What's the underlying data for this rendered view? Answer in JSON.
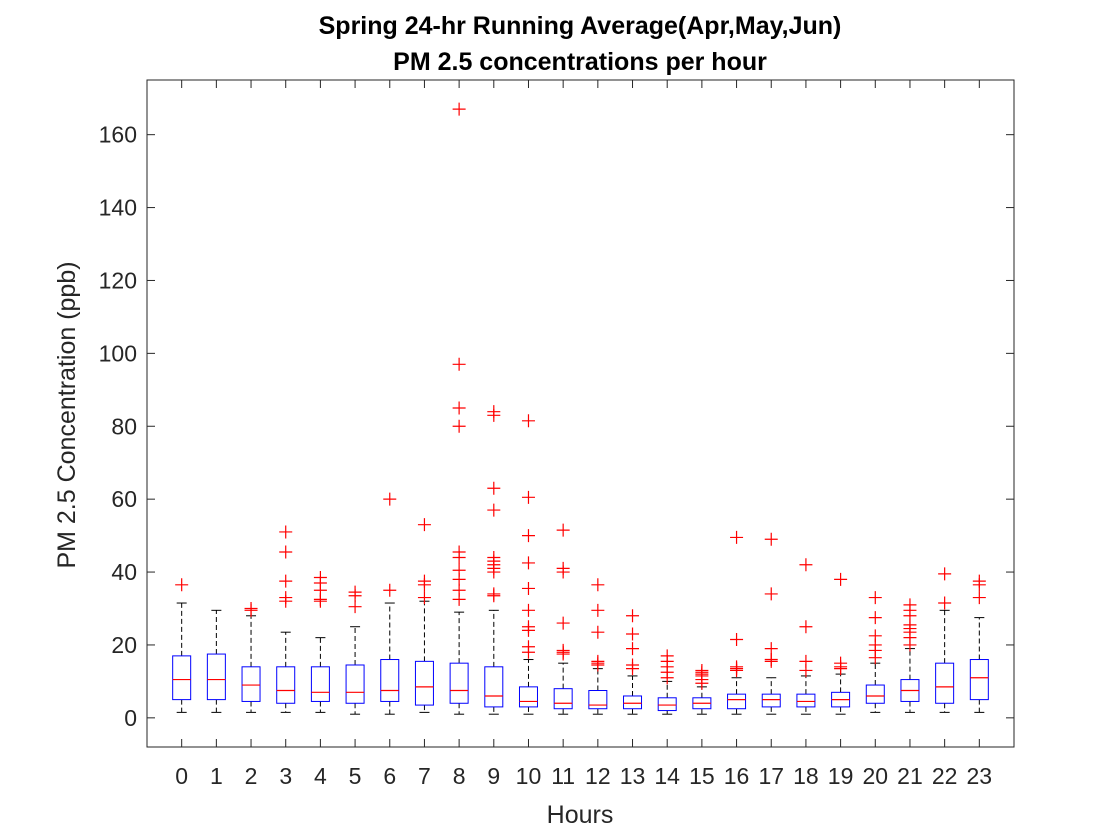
{
  "chart_data": {
    "type": "boxplot",
    "title": "Spring 24-hr Running Average(Apr,May,Jun)",
    "subtitle": "PM 2.5 concentrations per hour",
    "xlabel": "Hours",
    "ylabel": "PM 2.5 Concentration (ppb)",
    "ylim": [
      -8,
      175
    ],
    "yticks": [
      "0",
      "20",
      "40",
      "60",
      "80",
      "100",
      "120",
      "140",
      "160"
    ],
    "categories": [
      "0",
      "1",
      "2",
      "3",
      "4",
      "5",
      "6",
      "7",
      "8",
      "9",
      "10",
      "11",
      "12",
      "13",
      "14",
      "15",
      "16",
      "17",
      "18",
      "19",
      "20",
      "21",
      "22",
      "23"
    ],
    "boxes": [
      {
        "lower_whisker": 1.5,
        "q1": 5,
        "median": 10.5,
        "q3": 17,
        "upper_whisker": 31.5,
        "outliers": [
          36.5
        ]
      },
      {
        "lower_whisker": 1.5,
        "q1": 5,
        "median": 10.5,
        "q3": 17.5,
        "upper_whisker": 29.5,
        "outliers": []
      },
      {
        "lower_whisker": 1.5,
        "q1": 4.5,
        "median": 9,
        "q3": 14,
        "upper_whisker": 28,
        "outliers": [
          29.5,
          30
        ]
      },
      {
        "lower_whisker": 1.5,
        "q1": 4,
        "median": 7.5,
        "q3": 14,
        "upper_whisker": 23.5,
        "outliers": [
          32,
          33,
          37.5,
          45.5,
          51
        ]
      },
      {
        "lower_whisker": 1.5,
        "q1": 4.5,
        "median": 7,
        "q3": 14,
        "upper_whisker": 22,
        "outliers": [
          32,
          32.5,
          35,
          37,
          38.5
        ]
      },
      {
        "lower_whisker": 1,
        "q1": 4,
        "median": 7,
        "q3": 14.5,
        "upper_whisker": 25,
        "outliers": [
          30.5,
          33.5,
          34.5
        ]
      },
      {
        "lower_whisker": 1,
        "q1": 4.5,
        "median": 7.5,
        "q3": 16,
        "upper_whisker": 31.5,
        "outliers": [
          35,
          60
        ]
      },
      {
        "lower_whisker": 1.5,
        "q1": 3.5,
        "median": 8.5,
        "q3": 15.5,
        "upper_whisker": 32,
        "outliers": [
          33,
          36.5,
          37.5,
          53
        ]
      },
      {
        "lower_whisker": 1,
        "q1": 4,
        "median": 7.5,
        "q3": 15,
        "upper_whisker": 29,
        "outliers": [
          32.5,
          35,
          38,
          40.5,
          44,
          45.5,
          80,
          85,
          97,
          167
        ]
      },
      {
        "lower_whisker": 1,
        "q1": 3,
        "median": 6,
        "q3": 14,
        "upper_whisker": 29.5,
        "outliers": [
          33.5,
          34,
          40,
          41,
          42,
          43,
          44,
          57,
          63,
          83,
          84
        ]
      },
      {
        "lower_whisker": 1,
        "q1": 3,
        "median": 4.5,
        "q3": 8.5,
        "upper_whisker": 16,
        "outliers": [
          18,
          19.5,
          24,
          25,
          29.5,
          35.5,
          42.5,
          50,
          60.5,
          81.5
        ]
      },
      {
        "lower_whisker": 1,
        "q1": 2.5,
        "median": 4,
        "q3": 8,
        "upper_whisker": 15,
        "outliers": [
          17.5,
          18,
          18.5,
          26,
          40,
          41,
          51.5
        ]
      },
      {
        "lower_whisker": 1,
        "q1": 2.5,
        "median": 3.5,
        "q3": 7.5,
        "upper_whisker": 13.5,
        "outliers": [
          14.5,
          15,
          15.5,
          23.5,
          29.5,
          36.5
        ]
      },
      {
        "lower_whisker": 1,
        "q1": 2.5,
        "median": 4,
        "q3": 6,
        "upper_whisker": 11.5,
        "outliers": [
          13.5,
          14.5,
          19,
          23,
          28
        ]
      },
      {
        "lower_whisker": 1,
        "q1": 2,
        "median": 3.5,
        "q3": 5.5,
        "upper_whisker": 10,
        "outliers": [
          11,
          12.5,
          14,
          15.5,
          17
        ]
      },
      {
        "lower_whisker": 1,
        "q1": 2.5,
        "median": 4,
        "q3": 5.5,
        "upper_whisker": 8.5,
        "outliers": [
          9.5,
          10.5,
          11.5,
          12,
          12.5,
          13
        ]
      },
      {
        "lower_whisker": 1,
        "q1": 2.5,
        "median": 5,
        "q3": 6.5,
        "upper_whisker": 11,
        "outliers": [
          13,
          13.5,
          14,
          21.5,
          49.5
        ]
      },
      {
        "lower_whisker": 1,
        "q1": 3,
        "median": 5,
        "q3": 6.5,
        "upper_whisker": 11,
        "outliers": [
          15.5,
          16,
          19,
          34,
          49
        ]
      },
      {
        "lower_whisker": 1,
        "q1": 3,
        "median": 4.5,
        "q3": 6.5,
        "upper_whisker": 11.5,
        "outliers": [
          13,
          15.5,
          25,
          42
        ]
      },
      {
        "lower_whisker": 1,
        "q1": 3,
        "median": 5,
        "q3": 7,
        "upper_whisker": 12,
        "outliers": [
          13.5,
          14,
          15,
          38
        ]
      },
      {
        "lower_whisker": 1.5,
        "q1": 4,
        "median": 6,
        "q3": 9,
        "upper_whisker": 15,
        "outliers": [
          16.5,
          18.5,
          20,
          22.5,
          27.5,
          33
        ]
      },
      {
        "lower_whisker": 1.5,
        "q1": 4.5,
        "median": 7.5,
        "q3": 10.5,
        "upper_whisker": 19,
        "outliers": [
          20,
          22,
          23.5,
          24.5,
          25.5,
          28,
          29.5,
          31
        ]
      },
      {
        "lower_whisker": 1.5,
        "q1": 4,
        "median": 8.5,
        "q3": 15,
        "upper_whisker": 29.5,
        "outliers": [
          31.5,
          39.5
        ]
      },
      {
        "lower_whisker": 1.5,
        "q1": 5,
        "median": 11,
        "q3": 16,
        "upper_whisker": 27.5,
        "outliers": [
          33,
          36.5,
          37.5
        ]
      }
    ],
    "colors": {
      "box": "#0000ff",
      "median": "#ff0000",
      "whisker": "#000000",
      "outlier": "#ff0000",
      "axis": "#262626"
    },
    "grid": false,
    "legend": "none"
  }
}
